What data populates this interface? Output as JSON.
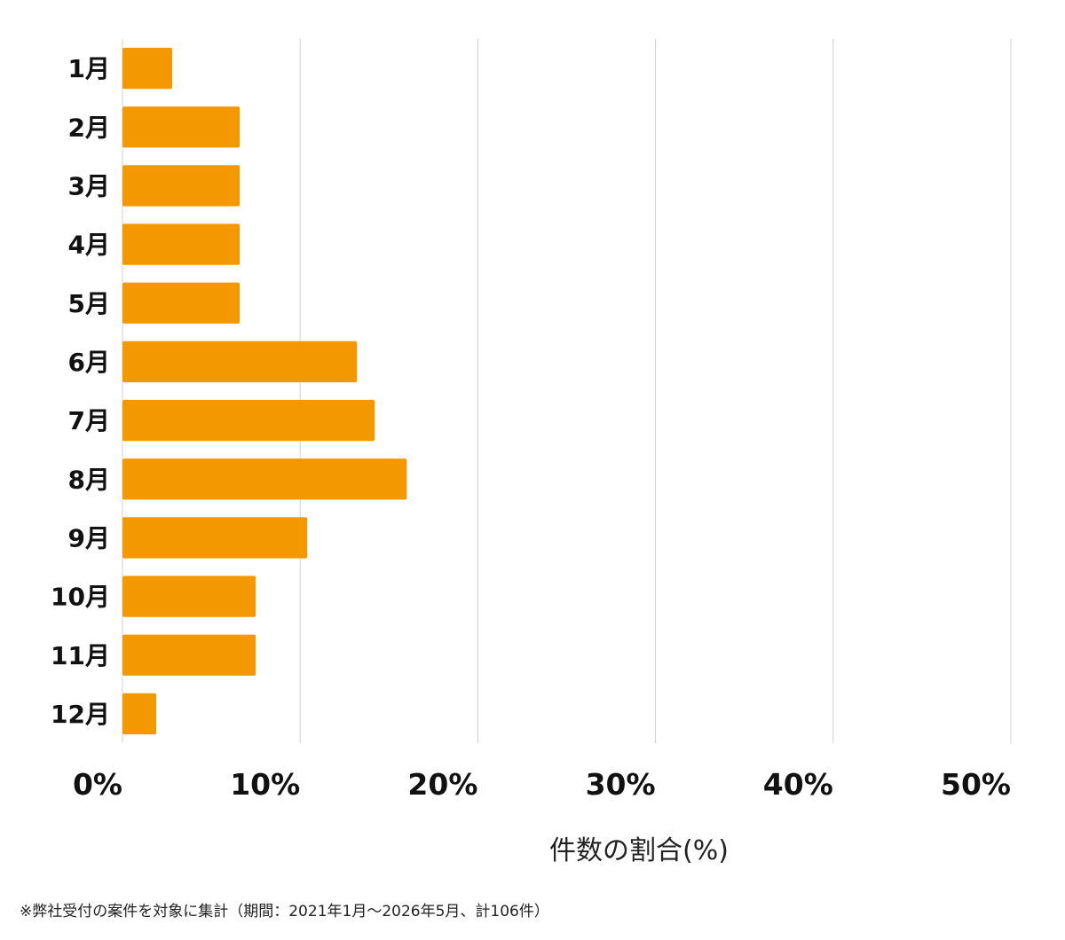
{
  "chart_data": {
    "type": "bar",
    "orientation": "horizontal",
    "categories": [
      "1月",
      "2月",
      "3月",
      "4月",
      "5月",
      "6月",
      "7月",
      "8月",
      "9月",
      "10月",
      "11月",
      "12月"
    ],
    "values": [
      2.8,
      6.6,
      6.6,
      6.6,
      6.6,
      13.2,
      14.2,
      16.0,
      10.4,
      7.5,
      7.5,
      1.9
    ],
    "unit": "%",
    "xlim": [
      0,
      50
    ],
    "xticks": [
      "0%",
      "10%",
      "20%",
      "30%",
      "40%",
      "50%"
    ],
    "xlabel": "件数の割合(%)",
    "ylabel": "",
    "title": "",
    "grid": true,
    "bar_color": "#f39800",
    "grid_color": "#d0d0d0"
  },
  "footnote": "※弊社受付の案件を対象に集計（期間：2021年1月〜2026年5月、計106件）"
}
